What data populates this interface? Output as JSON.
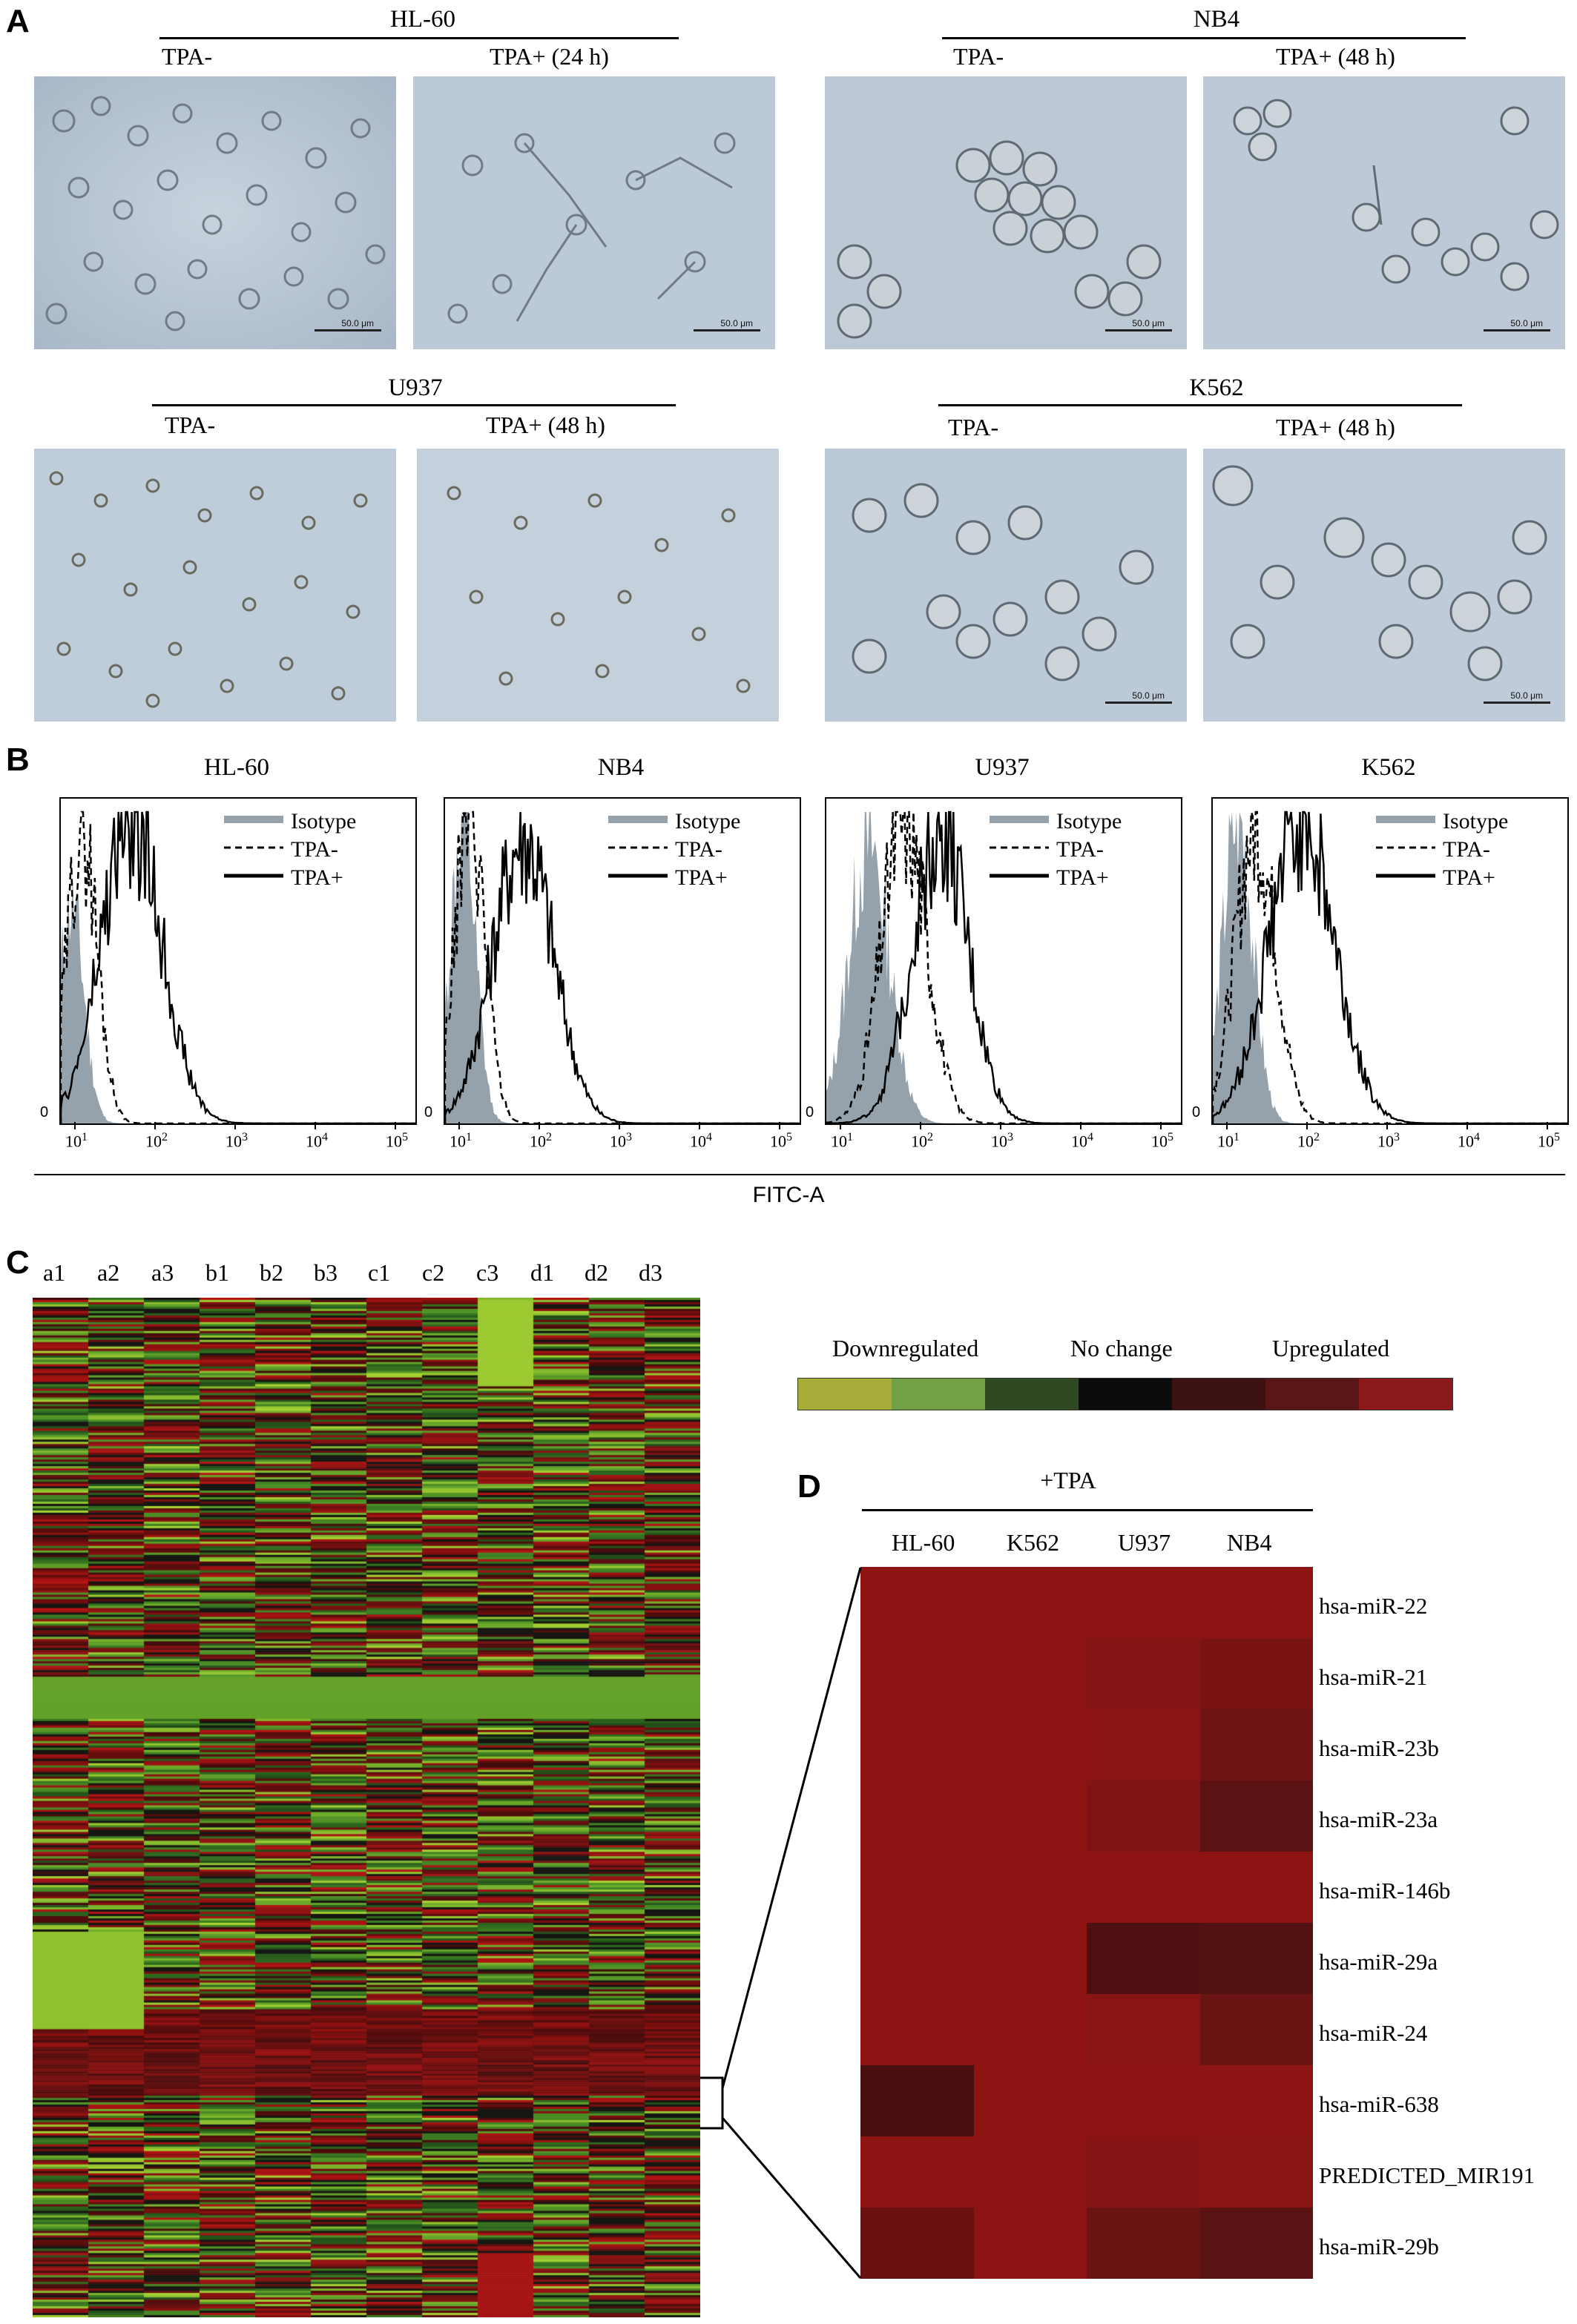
{
  "panelA": {
    "letter": "A",
    "groups": [
      {
        "name": "HL-60",
        "left": "TPA-",
        "right": "TPA+ (24 h)",
        "scale_left": "50.0 μm",
        "scale_right": "50.0 μm"
      },
      {
        "name": "NB4",
        "left": "TPA-",
        "right": "TPA+ (48 h)",
        "scale_left": "50.0 μm",
        "scale_right": "50.0 μm"
      },
      {
        "name": "U937",
        "left": "TPA-",
        "right": "TPA+ (48 h)",
        "scale_left": "",
        "scale_right": ""
      },
      {
        "name": "K562",
        "left": "TPA-",
        "right": "TPA+ (48 h)",
        "scale_left": "50.0 μm",
        "scale_right": "50.0 μm"
      }
    ]
  },
  "panelB": {
    "letter": "B",
    "xlabel": "FITC-A",
    "ticks": [
      "10",
      "10",
      "10",
      "10",
      "10"
    ],
    "tick_exps": [
      "1",
      "2",
      "3",
      "4",
      "5"
    ],
    "zero": "0",
    "legend": [
      "Isotype",
      "TPA-",
      "TPA+"
    ],
    "plots": [
      {
        "title": "HL-60"
      },
      {
        "title": "NB4"
      },
      {
        "title": "U937"
      },
      {
        "title": "K562"
      }
    ]
  },
  "panelC": {
    "letter": "C",
    "columns": [
      "a1",
      "a2",
      "a3",
      "b1",
      "b2",
      "b3",
      "c1",
      "c2",
      "c3",
      "d1",
      "d2",
      "d3"
    ]
  },
  "colorscale": {
    "labels": [
      "Downregulated",
      "No change",
      "Upregulated"
    ],
    "colors": [
      "#a8ad3a",
      "#72a045",
      "#2f4a22",
      "#0c0c0c",
      "#3b1111",
      "#5a1616",
      "#8a1a1a"
    ]
  },
  "panelD": {
    "letter": "D",
    "group_label": "+TPA",
    "columns": [
      "HL-60",
      "K562",
      "U937",
      "NB4"
    ],
    "rows": [
      "hsa-miR-22",
      "hsa-miR-21",
      "hsa-miR-23b",
      "hsa-miR-23a",
      "hsa-miR-146b",
      "hsa-miR-29a",
      "hsa-miR-24",
      "hsa-miR-638",
      "PREDICTED_MIR191",
      "hsa-miR-29b"
    ],
    "cells": [
      [
        "#8e1414",
        "#8e1414",
        "#8e1414",
        "#8e1414"
      ],
      [
        "#8e1414",
        "#8e1414",
        "#841414",
        "#7a1414"
      ],
      [
        "#8e1414",
        "#8e1414",
        "#8a1414",
        "#6e1414"
      ],
      [
        "#8e1414",
        "#8e1414",
        "#801414",
        "#5a1212"
      ],
      [
        "#8e1414",
        "#8e1414",
        "#8e1414",
        "#8e1414"
      ],
      [
        "#8e1414",
        "#8e1414",
        "#4e1010",
        "#521212"
      ],
      [
        "#8e1414",
        "#8e1414",
        "#881414",
        "#6a1414"
      ],
      [
        "#4a1010",
        "#8e1414",
        "#8e1414",
        "#8e1414"
      ],
      [
        "#8e1414",
        "#8e1414",
        "#861414",
        "#8a1414"
      ],
      [
        "#6a1212",
        "#8e1414",
        "#6a1414",
        "#5a1212"
      ]
    ]
  }
}
